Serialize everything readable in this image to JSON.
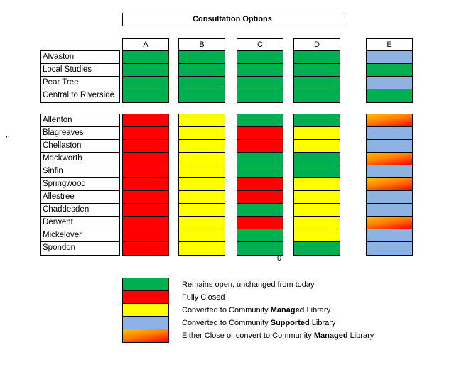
{
  "title": "Consultation Options",
  "stray_mark": ",,",
  "zero_label": "0",
  "options": [
    "A",
    "B",
    "C",
    "D",
    "E"
  ],
  "colors": {
    "green": "#00b050",
    "red": "#ff0000",
    "yellow": "#ffff00",
    "blue": "#8db3e2",
    "gradient": "orange-red"
  },
  "group1": {
    "libraries": [
      "Alvaston",
      "Local Studies",
      "Pear Tree",
      "Central to Riverside"
    ],
    "status": {
      "A": [
        "green",
        "green",
        "green",
        "green"
      ],
      "B": [
        "green",
        "green",
        "green",
        "green"
      ],
      "C": [
        "green",
        "green",
        "green",
        "green"
      ],
      "D": [
        "green",
        "green",
        "green",
        "green"
      ],
      "E": [
        "blue",
        "green",
        "blue",
        "green"
      ]
    }
  },
  "group2": {
    "libraries": [
      "Allenton",
      "Blagreaves",
      "Chellaston",
      "Mackworth",
      "Sinfin",
      "Springwood",
      "Allestree",
      "Chaddesden",
      "Derwent",
      "Mickelover",
      "Spondon"
    ],
    "status": {
      "A": [
        "red",
        "red",
        "red",
        "red",
        "red",
        "red",
        "red",
        "red",
        "red",
        "red",
        "red"
      ],
      "B": [
        "yellow",
        "yellow",
        "yellow",
        "yellow",
        "yellow",
        "yellow",
        "yellow",
        "yellow",
        "yellow",
        "yellow",
        "yellow"
      ],
      "C": [
        "green",
        "red",
        "red",
        "green",
        "green",
        "red",
        "red",
        "green",
        "red",
        "green",
        "green"
      ],
      "D": [
        "green",
        "yellow",
        "yellow",
        "green",
        "green",
        "yellow",
        "yellow",
        "yellow",
        "yellow",
        "yellow",
        "green"
      ],
      "E": [
        "gradient",
        "blue",
        "blue",
        "gradient",
        "blue",
        "gradient",
        "blue",
        "blue",
        "gradient",
        "blue",
        "blue"
      ]
    }
  },
  "legend": [
    {
      "color": "green",
      "parts": [
        {
          "text": "Remains open, unchanged from today",
          "bold": false
        }
      ]
    },
    {
      "color": "red",
      "parts": [
        {
          "text": "Fully Closed",
          "bold": false
        }
      ]
    },
    {
      "color": "yellow",
      "parts": [
        {
          "text": "Converted to Community ",
          "bold": false
        },
        {
          "text": "Managed",
          "bold": true
        },
        {
          "text": " Library",
          "bold": false
        }
      ]
    },
    {
      "color": "blue",
      "parts": [
        {
          "text": "Converted to Community ",
          "bold": false
        },
        {
          "text": "Supported",
          "bold": true
        },
        {
          "text": " Library",
          "bold": false
        }
      ]
    },
    {
      "color": "gradient",
      "parts": [
        {
          "text": "Either Close or convert to Community ",
          "bold": false
        },
        {
          "text": "Managed",
          "bold": true
        },
        {
          "text": " Library",
          "bold": false
        }
      ]
    }
  ]
}
